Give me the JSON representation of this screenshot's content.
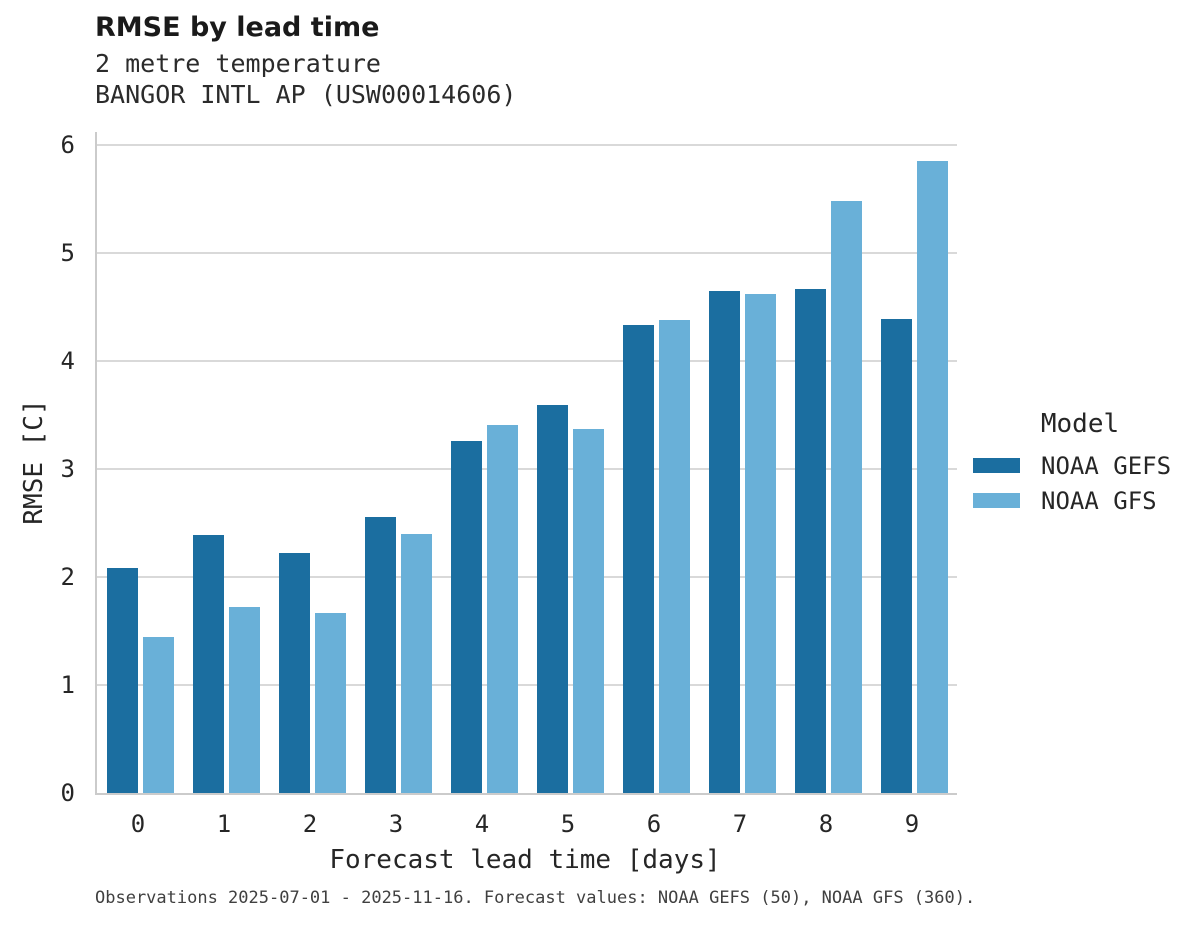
{
  "header": {
    "title": "RMSE by lead time",
    "subtitle": "2 metre temperature",
    "station": "BANGOR INTL AP (USW00014606)"
  },
  "chart_data": {
    "type": "bar",
    "title": "RMSE by lead time",
    "subtitle": "2 metre temperature",
    "station": "BANGOR INTL AP (USW00014606)",
    "xlabel": "Forecast lead time [days]",
    "ylabel": "RMSE [C]",
    "categories": [
      "0",
      "1",
      "2",
      "3",
      "4",
      "5",
      "6",
      "7",
      "8",
      "9"
    ],
    "series": [
      {
        "name": "NOAA GEFS",
        "color": "#1b6ea0",
        "values": [
          2.08,
          2.39,
          2.22,
          2.56,
          3.26,
          3.59,
          4.33,
          4.65,
          4.67,
          4.39
        ]
      },
      {
        "name": "NOAA GFS",
        "color": "#69b0d8",
        "values": [
          1.44,
          1.72,
          1.67,
          2.4,
          3.41,
          3.37,
          4.38,
          4.62,
          5.48,
          5.85
        ]
      }
    ],
    "yticks": [
      "0",
      "1",
      "2",
      "3",
      "4",
      "5",
      "6"
    ],
    "ylim": [
      0,
      6.12
    ],
    "grid": "horizontal-only",
    "legend_position": "right"
  },
  "legend": {
    "title": "Model"
  },
  "footer": {
    "caption": "Observations 2025-07-01 - 2025-11-16. Forecast values: NOAA GEFS (50), NOAA GFS (360)."
  },
  "colors": {
    "gefs": "#1b6ea0",
    "gfs": "#69b0d8",
    "gridline": "#d9d9d9",
    "spine": "#cbcbcb",
    "text": "#262626"
  }
}
